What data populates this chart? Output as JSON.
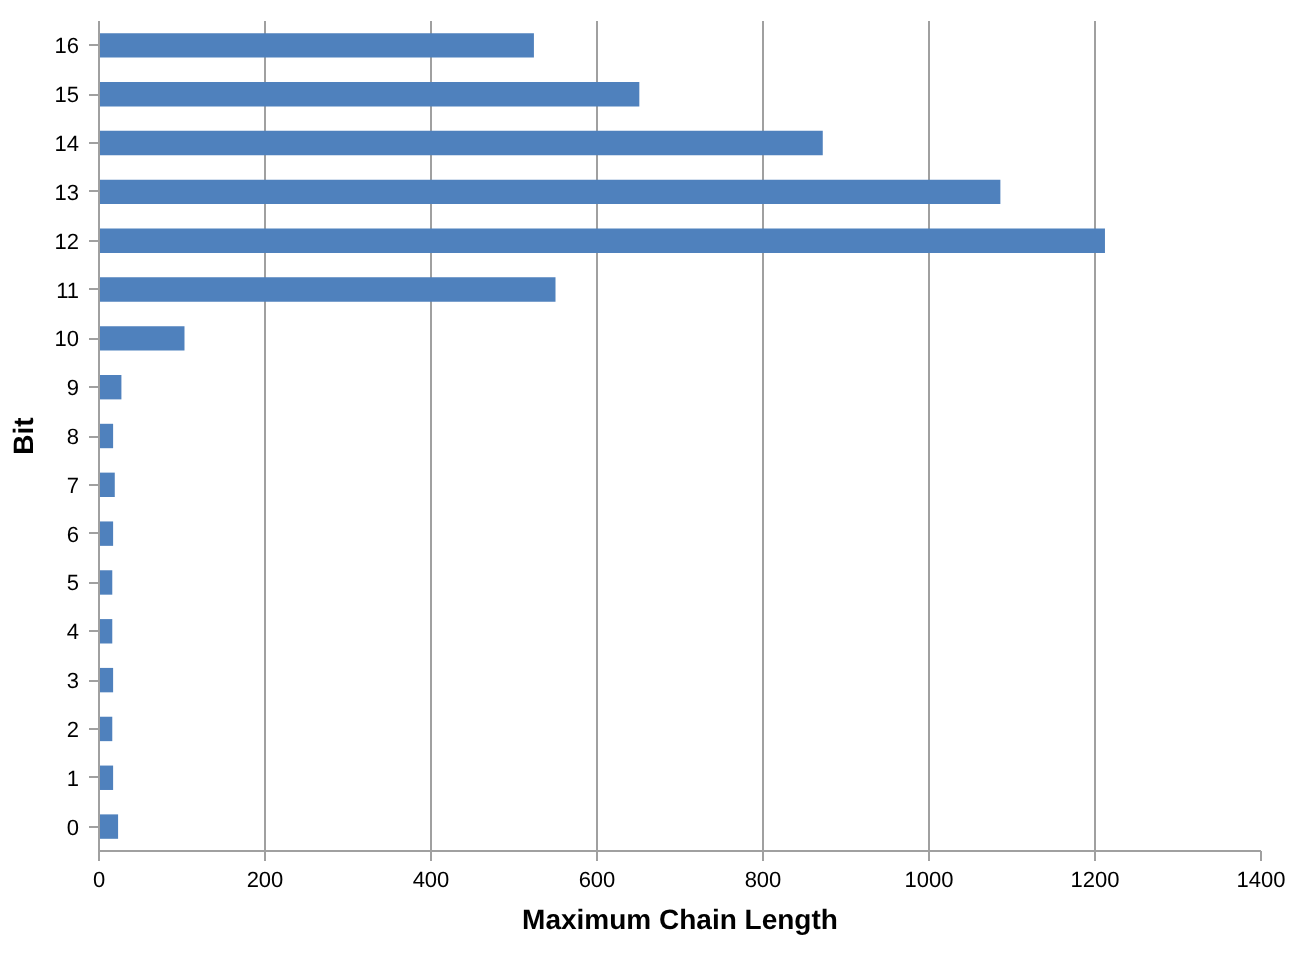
{
  "chart_data": {
    "type": "bar",
    "orientation": "horizontal",
    "xlabel": "Maximum Chain Length",
    "ylabel": "Bit",
    "categories": [
      "16",
      "15",
      "14",
      "13",
      "12",
      "11",
      "10",
      "9",
      "8",
      "7",
      "6",
      "5",
      "4",
      "3",
      "2",
      "1",
      "0"
    ],
    "values": [
      524,
      651,
      872,
      1086,
      1212,
      550,
      103,
      27,
      17,
      19,
      17,
      16,
      16,
      17,
      16,
      17,
      23
    ],
    "color": "#4f81bd",
    "xlim": [
      0,
      1400
    ],
    "xticks": [
      0,
      200,
      400,
      600,
      800,
      1000,
      1200,
      1400
    ],
    "grid": "x"
  }
}
